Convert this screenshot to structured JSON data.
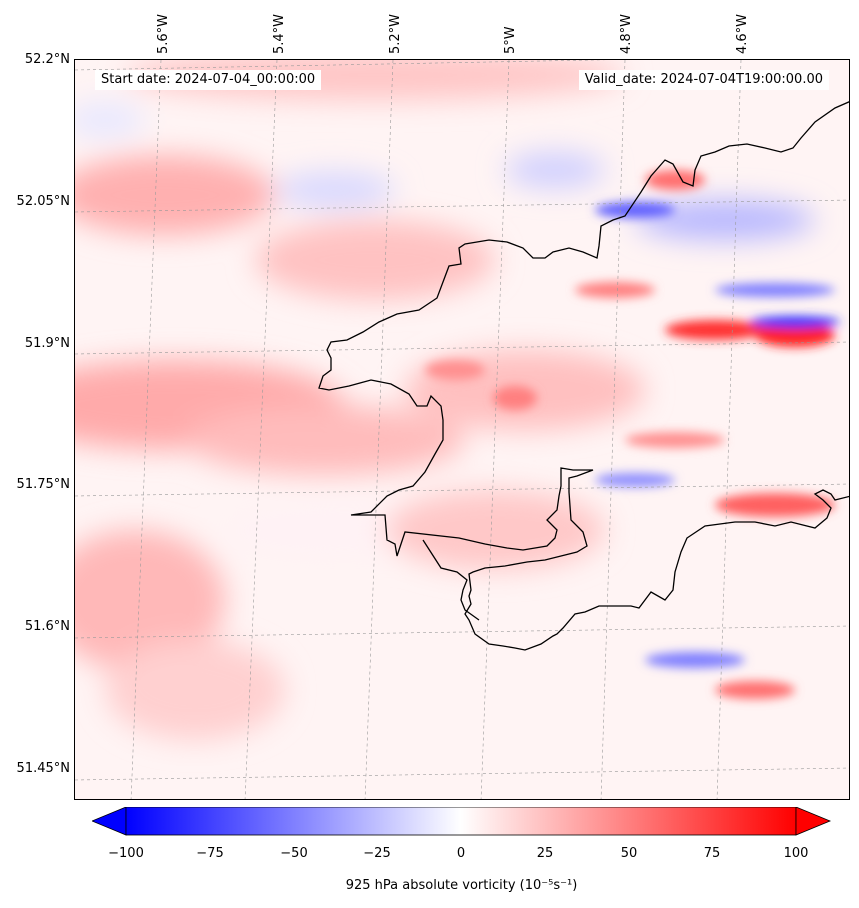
{
  "map": {
    "start_date": "Start date: 2024-07-04_00:00:00",
    "valid_date": "Valid_date: 2024-07-04T19:00:00.00",
    "lat_labels": [
      "52.2°N",
      "52.05°N",
      "51.9°N",
      "51.75°N",
      "51.6°N",
      "51.45°N"
    ],
    "lon_labels": [
      "5.6°W",
      "5.4°W",
      "5.2°W",
      "5°W",
      "4.8°W",
      "4.6°W"
    ],
    "colormap": [
      "#0000ff",
      "#ffffff",
      "#ff0000"
    ],
    "coastline_color": "#000000",
    "gridlines": true
  },
  "colorbar": {
    "label": "925 hPa absolute vorticity (10⁻⁵s⁻¹)",
    "ticks": [
      "−100",
      "−75",
      "−50",
      "−25",
      "0",
      "25",
      "50",
      "75",
      "100"
    ],
    "min": -100,
    "max": 100,
    "extend": "both"
  }
}
